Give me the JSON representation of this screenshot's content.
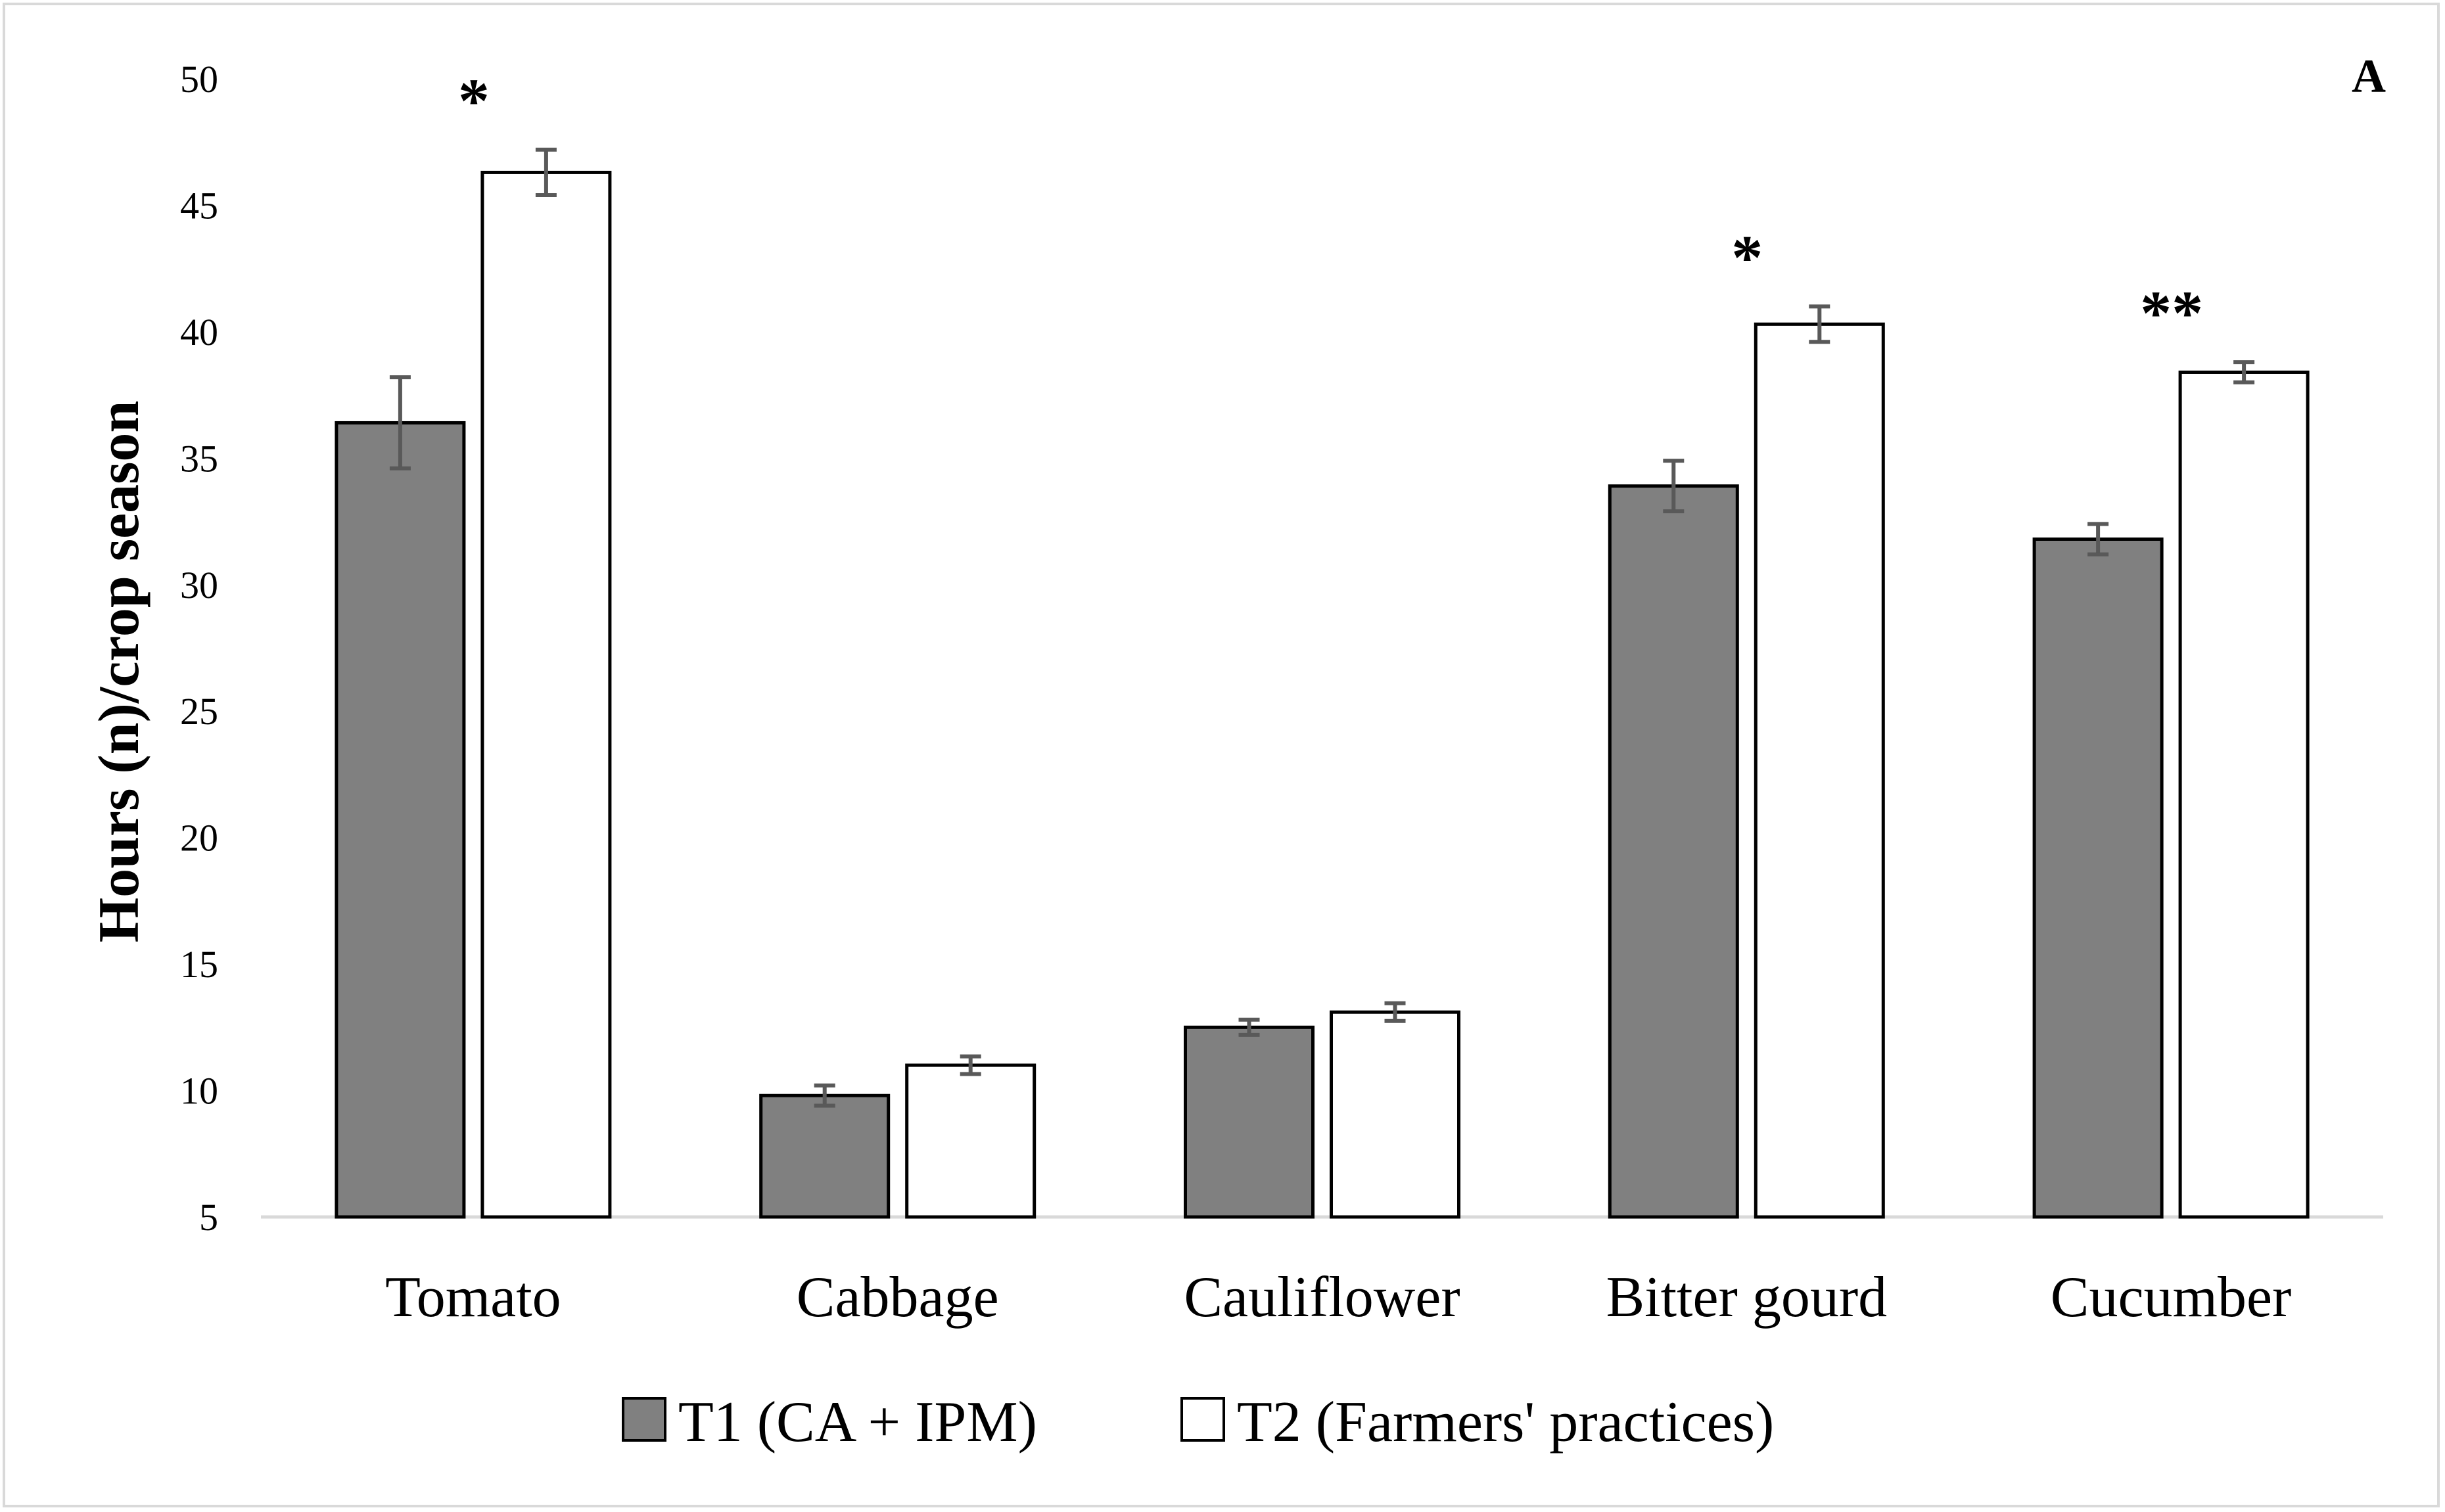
{
  "chart_data": {
    "type": "bar",
    "panel_label": "A",
    "ylabel": "Hours (n)/crop season",
    "xlabel": "",
    "ylim": [
      5,
      50
    ],
    "yticks": [
      "5",
      "10",
      "15",
      "20",
      "25",
      "30",
      "35",
      "40",
      "45",
      "50"
    ],
    "categories": [
      "Tomato",
      "Cabbage",
      "Cauliflower",
      "Bitter gourd",
      "Cucumber"
    ],
    "series": [
      {
        "name": "T1 (CA + IPM)",
        "color": "#808080",
        "values": [
          36.4,
          9.8,
          12.5,
          33.9,
          31.8
        ],
        "errors": [
          1.8,
          0.4,
          0.3,
          1.0,
          0.6
        ]
      },
      {
        "name": "T2 (Farmers' practices)",
        "color": "#ffffff",
        "values": [
          46.3,
          11.0,
          13.1,
          40.3,
          38.4
        ],
        "errors": [
          0.9,
          0.35,
          0.35,
          0.7,
          0.4
        ]
      }
    ],
    "annotations": [
      "*",
      "",
      "",
      "*",
      "**"
    ],
    "legend_position": "bottom",
    "grid": false
  }
}
